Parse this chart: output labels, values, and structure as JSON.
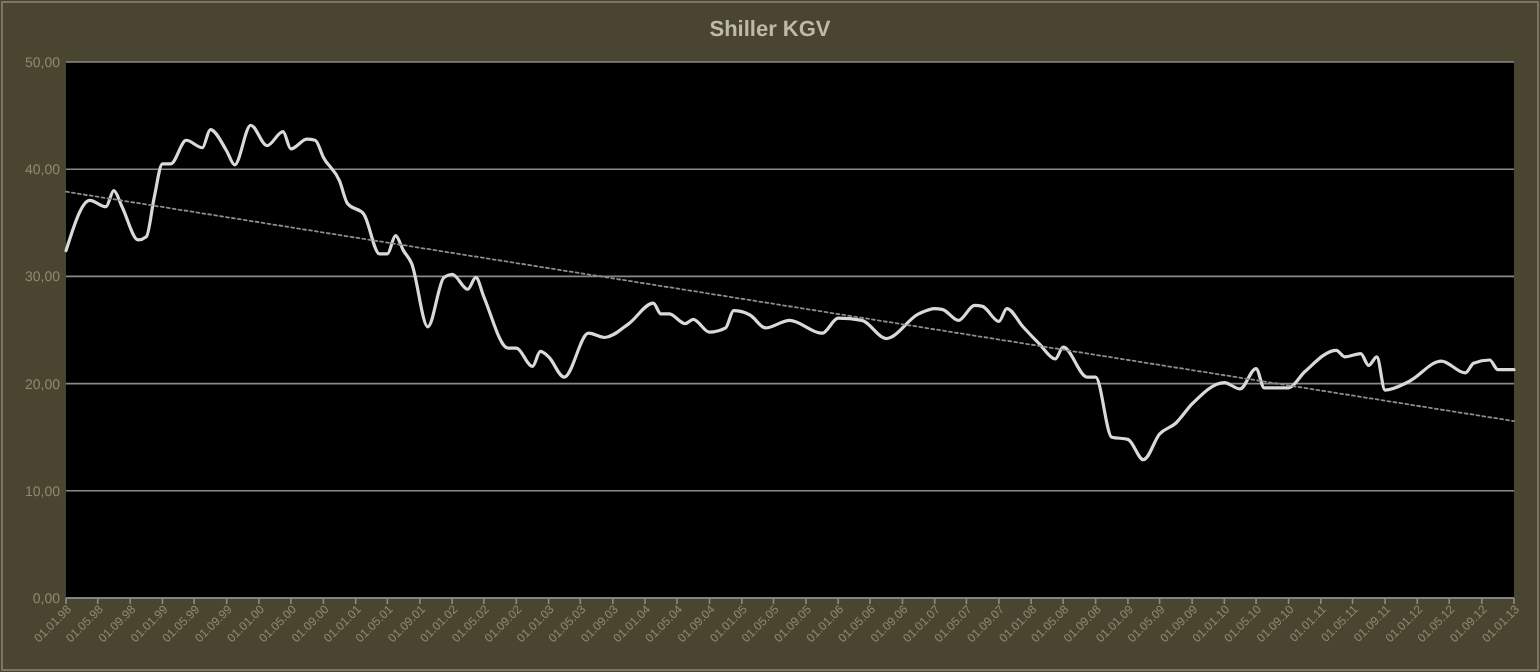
{
  "chart_data": {
    "type": "line",
    "title": "Shiller KGV",
    "xlim": [
      "1998-01",
      "2013-01"
    ],
    "xticks": [
      {
        "value": "1998-01",
        "label": "01.01.98"
      },
      {
        "value": "1998-05",
        "label": "01.05.98"
      },
      {
        "value": "1998-09",
        "label": "01.09.98"
      },
      {
        "value": "1999-01",
        "label": "01.01.99"
      },
      {
        "value": "1999-05",
        "label": "01.05.99"
      },
      {
        "value": "1999-09",
        "label": "01.09.99"
      },
      {
        "value": "2000-01",
        "label": "01.01.00"
      },
      {
        "value": "2000-05",
        "label": "01.05.00"
      },
      {
        "value": "2000-09",
        "label": "01.09.00"
      },
      {
        "value": "2001-01",
        "label": "01.01.01"
      },
      {
        "value": "2001-05",
        "label": "01.05.01"
      },
      {
        "value": "2001-09",
        "label": "01.09.01"
      },
      {
        "value": "2002-01",
        "label": "01.01.02"
      },
      {
        "value": "2002-05",
        "label": "01.05.02"
      },
      {
        "value": "2002-09",
        "label": "01.09.02"
      },
      {
        "value": "2003-01",
        "label": "01.01.03"
      },
      {
        "value": "2003-05",
        "label": "01.05.03"
      },
      {
        "value": "2003-09",
        "label": "01.09.03"
      },
      {
        "value": "2004-01",
        "label": "01.01.04"
      },
      {
        "value": "2004-05",
        "label": "01.05.04"
      },
      {
        "value": "2004-09",
        "label": "01.09.04"
      },
      {
        "value": "2005-01",
        "label": "01.01.05"
      },
      {
        "value": "2005-05",
        "label": "01.05.05"
      },
      {
        "value": "2005-09",
        "label": "01.09.05"
      },
      {
        "value": "2006-01",
        "label": "01.01.06"
      },
      {
        "value": "2006-05",
        "label": "01.05.06"
      },
      {
        "value": "2006-09",
        "label": "01.09.06"
      },
      {
        "value": "2007-01",
        "label": "01.01.07"
      },
      {
        "value": "2007-05",
        "label": "01.05.07"
      },
      {
        "value": "2007-09",
        "label": "01.09.07"
      },
      {
        "value": "2008-01",
        "label": "01.01.08"
      },
      {
        "value": "2008-05",
        "label": "01.05.08"
      },
      {
        "value": "2008-09",
        "label": "01.09.08"
      },
      {
        "value": "2009-01",
        "label": "01.01.09"
      },
      {
        "value": "2009-05",
        "label": "01.05.09"
      },
      {
        "value": "2009-09",
        "label": "01.09.09"
      },
      {
        "value": "2010-01",
        "label": "01.01.10"
      },
      {
        "value": "2010-05",
        "label": "01.05.10"
      },
      {
        "value": "2010-09",
        "label": "01.09.10"
      },
      {
        "value": "2011-01",
        "label": "01.01.11"
      },
      {
        "value": "2011-05",
        "label": "01.05.11"
      },
      {
        "value": "2011-09",
        "label": "01.09.11"
      },
      {
        "value": "2012-01",
        "label": "01.01.12"
      },
      {
        "value": "2012-05",
        "label": "01.05.12"
      },
      {
        "value": "2012-09",
        "label": "01.09.12"
      },
      {
        "value": "2013-01",
        "label": "01.01.13"
      }
    ],
    "ylim": [
      0,
      50
    ],
    "yticks": [
      {
        "value": 0,
        "label": "0,00"
      },
      {
        "value": 10,
        "label": "10,00"
      },
      {
        "value": 20,
        "label": "20,00"
      },
      {
        "value": 30,
        "label": "30,00"
      },
      {
        "value": 40,
        "label": "40,00"
      },
      {
        "value": 50,
        "label": "50,00"
      }
    ],
    "grid": "y",
    "marker": "none",
    "series": [
      {
        "color": "#d9d9d9",
        "line_style": "solid",
        "x": [
          "1998-01",
          "1998-04",
          "1998-06",
          "1998-07",
          "1998-08",
          "1998-10",
          "1998-11",
          "1998-12",
          "1999-01",
          "1999-02",
          "1999-04",
          "1999-06",
          "1999-07",
          "1999-09",
          "1999-10",
          "1999-12",
          "2000-02",
          "2000-04",
          "2000-05",
          "2000-07",
          "2000-08",
          "2000-09",
          "2000-11",
          "2000-12",
          "2001-02",
          "2001-04",
          "2001-05",
          "2001-06",
          "2001-07",
          "2001-08",
          "2001-10",
          "2001-12",
          "2002-01",
          "2002-03",
          "2002-04",
          "2002-05",
          "2002-08",
          "2002-09",
          "2002-11",
          "2002-12",
          "2003-01",
          "2003-03",
          "2003-06",
          "2003-08",
          "2003-11",
          "2004-02",
          "2004-03",
          "2004-04",
          "2004-06",
          "2004-07",
          "2004-09",
          "2004-11",
          "2004-12",
          "2005-02",
          "2005-04",
          "2005-07",
          "2005-11",
          "2006-01",
          "2006-04",
          "2006-07",
          "2006-11",
          "2007-01",
          "2007-02",
          "2007-04",
          "2007-06",
          "2007-07",
          "2007-09",
          "2007-10",
          "2007-12",
          "2008-02",
          "2008-04",
          "2008-05",
          "2008-08",
          "2008-09",
          "2008-11",
          "2009-01",
          "2009-03",
          "2009-05",
          "2009-07",
          "2009-09",
          "2010-01",
          "2010-03",
          "2010-05",
          "2010-06",
          "2010-09",
          "2010-11",
          "2011-03",
          "2011-04",
          "2011-06",
          "2011-07",
          "2011-08",
          "2011-09",
          "2011-12",
          "2012-04",
          "2012-07",
          "2012-08",
          "2012-10",
          "2012-11",
          "2013-01"
        ],
        "values": [
          32.4,
          37.1,
          36.5,
          38.0,
          36.5,
          33.4,
          33.7,
          37.4,
          40.5,
          40.5,
          42.7,
          42.0,
          43.7,
          41.7,
          40.4,
          44.1,
          42.2,
          43.5,
          41.9,
          42.8,
          42.7,
          41.1,
          38.9,
          36.8,
          35.8,
          32.1,
          32.1,
          33.8,
          32.4,
          31.2,
          25.3,
          29.9,
          30.2,
          28.8,
          29.9,
          28.1,
          23.3,
          23.3,
          21.6,
          23.0,
          22.5,
          20.6,
          24.7,
          24.3,
          25.6,
          27.5,
          26.5,
          26.5,
          25.6,
          26.0,
          24.8,
          25.2,
          26.8,
          26.4,
          25.2,
          25.9,
          24.7,
          26.1,
          25.9,
          24.2,
          26.5,
          27.0,
          26.9,
          25.9,
          27.3,
          27.2,
          25.8,
          27.0,
          25.3,
          23.7,
          22.3,
          23.4,
          20.6,
          20.6,
          15.0,
          14.8,
          12.9,
          15.3,
          16.3,
          18.1,
          20.1,
          19.5,
          21.4,
          19.6,
          19.6,
          21.1,
          23.1,
          22.5,
          22.8,
          21.7,
          22.5,
          19.4,
          20.2,
          22.1,
          21.0,
          21.9,
          22.2,
          21.3,
          21.3
        ]
      },
      {
        "color": "#8c8c8c",
        "line_style": "dotted",
        "x": [
          "1998-01",
          "2013-01"
        ],
        "values": [
          37.9,
          16.5
        ]
      }
    ]
  }
}
